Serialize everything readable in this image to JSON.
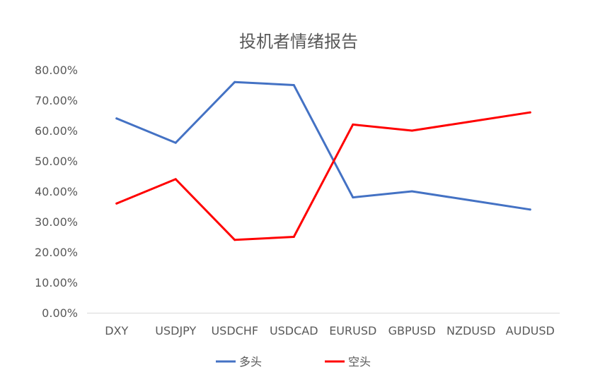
{
  "chart_data": {
    "type": "line",
    "title": "投机者情绪报告",
    "xlabel": "",
    "ylabel": "",
    "categories": [
      "DXY",
      "USDJPY",
      "USDCHF",
      "USDCAD",
      "EURUSD",
      "GBPUSD",
      "NZDUSD",
      "AUDUSD"
    ],
    "series": [
      {
        "name": "多头",
        "color": "#4472C4",
        "values": [
          64,
          56,
          76,
          75,
          38,
          40,
          37,
          34
        ]
      },
      {
        "name": "空头",
        "color": "#FF0000",
        "values": [
          36,
          44,
          24,
          25,
          62,
          60,
          63,
          66
        ]
      }
    ],
    "ylim": [
      0,
      80
    ],
    "yticks": [
      0,
      10,
      20,
      30,
      40,
      50,
      60,
      70,
      80
    ],
    "ytick_labels": [
      "0.00%",
      "10.00%",
      "20.00%",
      "30.00%",
      "40.00%",
      "50.00%",
      "60.00%",
      "70.00%",
      "80.00%"
    ],
    "grid": false,
    "legend_position": "bottom"
  }
}
